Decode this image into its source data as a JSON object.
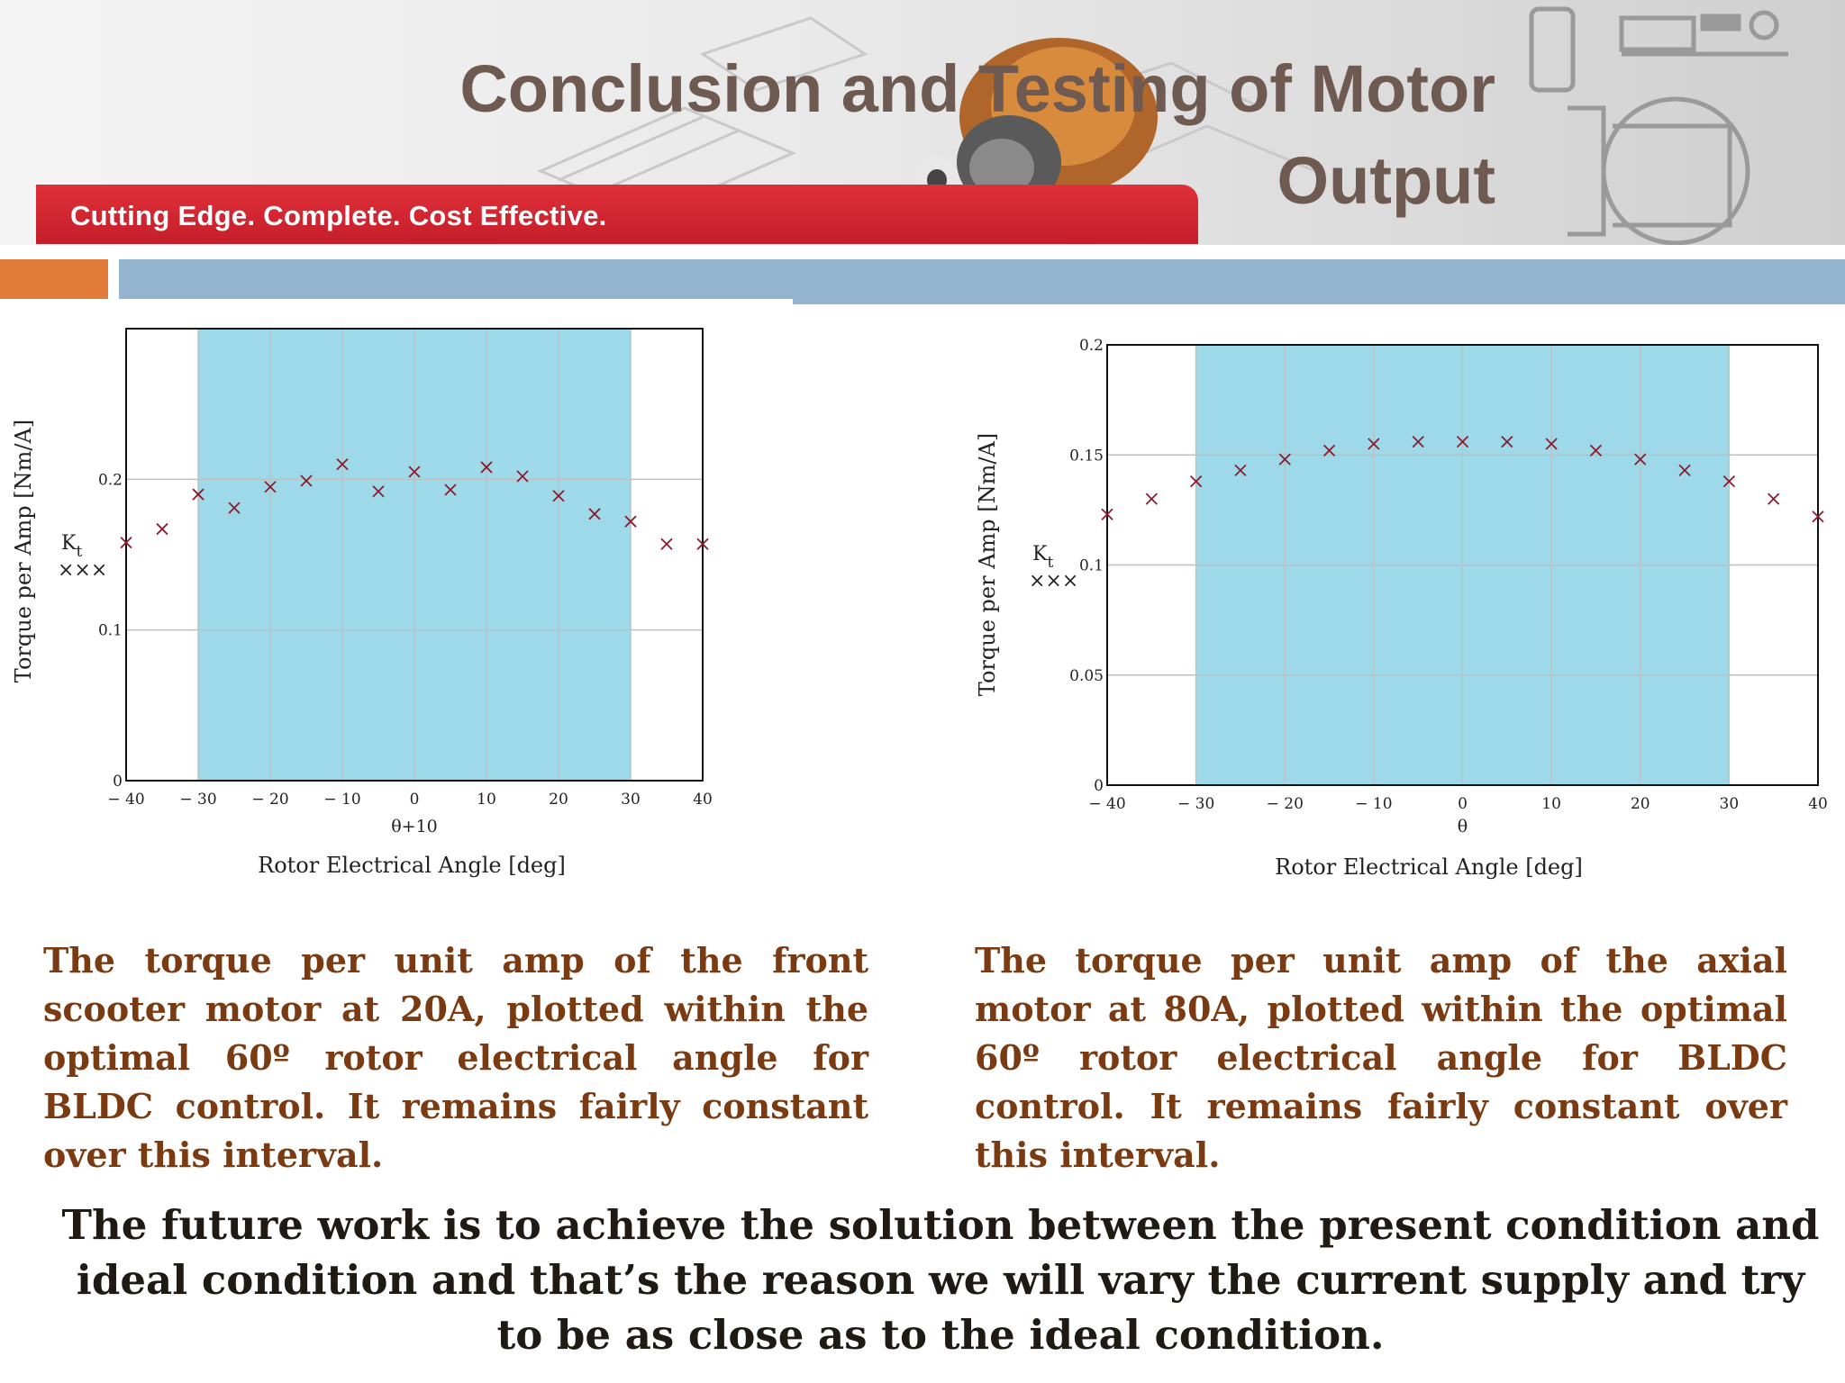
{
  "header": {
    "title": "Conclusion and Testing of Motor Output",
    "tagline": "Cutting Edge. Complete. Cost Effective."
  },
  "chart_data": [
    {
      "type": "scatter",
      "xlabel": "Rotor Electrical Angle [deg]",
      "xsub": "θ+10",
      "ylabel": "Torque per Amp [Nm/A]",
      "legend": "K_t",
      "legend_marker": "×××",
      "xlim": [
        -40,
        40
      ],
      "ylim": [
        0,
        0.3
      ],
      "xticks": [
        "− 40",
        "− 30",
        "− 20",
        "− 10",
        "0",
        "10",
        "20",
        "30",
        "40"
      ],
      "xtick_values": [
        -40,
        -30,
        -20,
        -10,
        0,
        10,
        20,
        30,
        40
      ],
      "yticks": [
        "0",
        "0.1",
        "0.2"
      ],
      "ytick_values": [
        0,
        0.1,
        0.2
      ],
      "shaded_region": [
        -30,
        30
      ],
      "grid": true,
      "series": [
        {
          "x": [
            -40,
            -35,
            -30,
            -25,
            -20,
            -15,
            -10,
            -5,
            0,
            5,
            10,
            15,
            20,
            25,
            30,
            35,
            40
          ],
          "y": [
            0.158,
            0.167,
            0.19,
            0.181,
            0.195,
            0.199,
            0.21,
            0.192,
            0.205,
            0.193,
            0.208,
            0.202,
            0.189,
            0.177,
            0.172,
            0.157,
            0.157
          ]
        }
      ]
    },
    {
      "type": "scatter",
      "xlabel": "Rotor Electrical Angle [deg]",
      "xsub": "θ",
      "ylabel": "Torque per Amp [Nm/A]",
      "legend": "K_t",
      "legend_marker": "×××",
      "xlim": [
        -40,
        40
      ],
      "ylim": [
        0,
        0.2
      ],
      "xticks": [
        "− 40",
        "− 30",
        "− 20",
        "− 10",
        "0",
        "10",
        "20",
        "30",
        "40"
      ],
      "xtick_values": [
        -40,
        -30,
        -20,
        -10,
        0,
        10,
        20,
        30,
        40
      ],
      "yticks": [
        "0",
        "0.05",
        "0.1",
        "0.15",
        "0.2"
      ],
      "ytick_values": [
        0,
        0.05,
        0.1,
        0.15,
        0.2
      ],
      "shaded_region": [
        -30,
        30
      ],
      "grid": true,
      "series": [
        {
          "x": [
            -40,
            -35,
            -30,
            -25,
            -20,
            -15,
            -10,
            -5,
            0,
            5,
            10,
            15,
            20,
            25,
            30,
            35,
            40
          ],
          "y": [
            0.123,
            0.13,
            0.138,
            0.143,
            0.148,
            0.152,
            0.155,
            0.156,
            0.156,
            0.156,
            0.155,
            0.152,
            0.148,
            0.143,
            0.138,
            0.13,
            0.122
          ]
        }
      ]
    }
  ],
  "captions": {
    "left": "The torque per unit amp of the front scooter motor at 20A, plotted within the optimal 60º rotor electrical angle for BLDC control. It remains fairly constant over this interval.",
    "right": "The torque per unit amp of the axial motor at 80A, plotted within the optimal 60º rotor electrical angle for BLDC control. It remains fairly constant over this interval."
  },
  "footer": "The future work is to achieve the solution between the present condition and ideal condition and that’s the reason we will vary the current supply and try to be as close as to the ideal condition.",
  "colors": {
    "title": "#6e5a50",
    "red_strip": "#c41e2a",
    "accent_orange": "#e07b39",
    "accent_blue": "#93b3cf",
    "shade": "#9ed9ea",
    "marker": "#8a1c2c",
    "caption": "#7a3b12"
  }
}
